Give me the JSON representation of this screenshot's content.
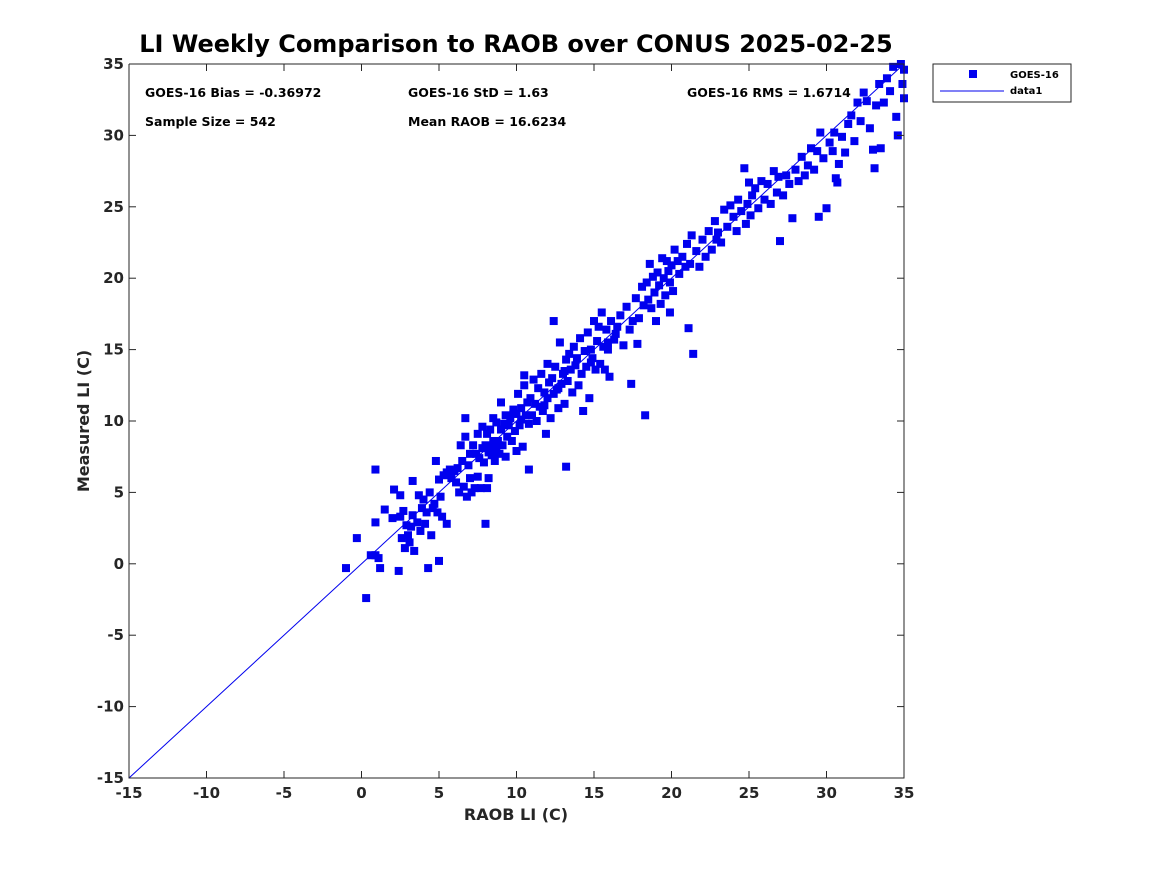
{
  "chart_data": {
    "type": "scatter",
    "title": "LI Weekly Comparison to RAOB over CONUS 2025-02-25",
    "xlabel": "RAOB LI (C)",
    "ylabel": "Measured LI (C)",
    "xlim": [
      -15,
      35
    ],
    "ylim": [
      -15,
      35
    ],
    "xticks": [
      -15,
      -10,
      -5,
      0,
      5,
      10,
      15,
      20,
      25,
      30,
      35
    ],
    "yticks": [
      -15,
      -10,
      -5,
      0,
      5,
      10,
      15,
      20,
      25,
      30,
      35
    ],
    "grid": false,
    "legend_position": "outside-top-right",
    "stats": {
      "bias": "GOES-16 Bias = -0.36972",
      "std": "GOES-16 StD = 1.63",
      "rms": "GOES-16 RMS = 1.6714",
      "sample": "Sample Size = 542",
      "mean": "Mean RAOB = 16.6234"
    },
    "series": [
      {
        "name": "GOES-16",
        "kind": "scatter",
        "marker": "square",
        "color": "#0000ee",
        "points": [
          [
            -1.0,
            -0.3
          ],
          [
            -0.3,
            1.8
          ],
          [
            0.3,
            -2.4
          ],
          [
            0.6,
            0.6
          ],
          [
            0.9,
            0.6
          ],
          [
            0.9,
            6.6
          ],
          [
            0.9,
            2.9
          ],
          [
            1.1,
            0.4
          ],
          [
            1.2,
            -0.3
          ],
          [
            1.5,
            3.8
          ],
          [
            2.0,
            3.2
          ],
          [
            2.1,
            5.2
          ],
          [
            2.4,
            -0.5
          ],
          [
            2.5,
            3.3
          ],
          [
            2.5,
            4.8
          ],
          [
            2.6,
            1.8
          ],
          [
            2.7,
            3.7
          ],
          [
            2.8,
            1.1
          ],
          [
            2.9,
            2.7
          ],
          [
            3.0,
            2.0
          ],
          [
            3.1,
            1.5
          ],
          [
            3.2,
            2.6
          ],
          [
            3.3,
            3.4
          ],
          [
            3.3,
            5.8
          ],
          [
            3.4,
            0.9
          ],
          [
            3.6,
            2.9
          ],
          [
            3.7,
            4.8
          ],
          [
            3.8,
            2.3
          ],
          [
            3.9,
            3.9
          ],
          [
            4.0,
            4.5
          ],
          [
            4.1,
            2.8
          ],
          [
            4.2,
            3.6
          ],
          [
            4.3,
            -0.3
          ],
          [
            4.4,
            5.0
          ],
          [
            4.5,
            2.0
          ],
          [
            4.6,
            3.9
          ],
          [
            4.7,
            4.2
          ],
          [
            4.8,
            7.2
          ],
          [
            4.9,
            3.6
          ],
          [
            5.0,
            0.2
          ],
          [
            5.0,
            5.9
          ],
          [
            5.1,
            4.7
          ],
          [
            5.2,
            3.3
          ],
          [
            5.3,
            6.2
          ],
          [
            5.5,
            6.4
          ],
          [
            5.5,
            2.8
          ],
          [
            5.7,
            6.6
          ],
          [
            5.8,
            6.0
          ],
          [
            6.0,
            6.5
          ],
          [
            6.1,
            5.7
          ],
          [
            6.2,
            6.7
          ],
          [
            6.3,
            5.0
          ],
          [
            6.4,
            8.3
          ],
          [
            6.5,
            7.2
          ],
          [
            6.6,
            5.4
          ],
          [
            6.7,
            10.2
          ],
          [
            6.7,
            8.9
          ],
          [
            6.8,
            4.7
          ],
          [
            6.9,
            6.9
          ],
          [
            7.0,
            7.7
          ],
          [
            7.0,
            6.0
          ],
          [
            7.1,
            5.0
          ],
          [
            7.2,
            8.3
          ],
          [
            7.3,
            5.3
          ],
          [
            7.4,
            7.7
          ],
          [
            7.5,
            9.1
          ],
          [
            7.5,
            6.1
          ],
          [
            7.6,
            7.4
          ],
          [
            7.7,
            5.3
          ],
          [
            7.8,
            8.1
          ],
          [
            7.8,
            9.6
          ],
          [
            7.9,
            7.1
          ],
          [
            8.0,
            8.3
          ],
          [
            8.0,
            2.8
          ],
          [
            8.1,
            9.1
          ],
          [
            8.1,
            5.3
          ],
          [
            8.2,
            7.8
          ],
          [
            8.2,
            6.0
          ],
          [
            8.3,
            9.4
          ],
          [
            8.3,
            8.1
          ],
          [
            8.4,
            7.6
          ],
          [
            8.5,
            8.6
          ],
          [
            8.5,
            10.2
          ],
          [
            8.6,
            7.2
          ],
          [
            8.7,
            8.1
          ],
          [
            8.7,
            9.9
          ],
          [
            8.8,
            8.6
          ],
          [
            8.9,
            7.7
          ],
          [
            9.0,
            9.4
          ],
          [
            9.0,
            11.3
          ],
          [
            9.1,
            8.3
          ],
          [
            9.2,
            9.8
          ],
          [
            9.3,
            7.5
          ],
          [
            9.3,
            10.4
          ],
          [
            9.4,
            8.9
          ],
          [
            9.5,
            9.7
          ],
          [
            9.6,
            10.2
          ],
          [
            9.7,
            8.6
          ],
          [
            9.8,
            10.8
          ],
          [
            9.9,
            9.3
          ],
          [
            10.0,
            10.5
          ],
          [
            10.0,
            7.9
          ],
          [
            10.1,
            11.9
          ],
          [
            10.2,
            9.7
          ],
          [
            10.3,
            10.9
          ],
          [
            10.4,
            8.2
          ],
          [
            10.5,
            12.5
          ],
          [
            10.5,
            13.2
          ],
          [
            10.6,
            10.4
          ],
          [
            10.7,
            11.3
          ],
          [
            10.8,
            9.8
          ],
          [
            10.8,
            6.6
          ],
          [
            10.9,
            11.6
          ],
          [
            11.0,
            10.4
          ],
          [
            11.1,
            12.9
          ],
          [
            11.2,
            11.2
          ],
          [
            11.3,
            10.0
          ],
          [
            11.4,
            12.3
          ],
          [
            11.5,
            11.0
          ],
          [
            11.6,
            13.3
          ],
          [
            11.7,
            10.7
          ],
          [
            11.8,
            12.0
          ],
          [
            11.9,
            9.1
          ],
          [
            12.0,
            11.6
          ],
          [
            12.0,
            14.0
          ],
          [
            12.1,
            12.7
          ],
          [
            12.2,
            10.2
          ],
          [
            12.3,
            13.0
          ],
          [
            12.4,
            11.9
          ],
          [
            12.4,
            17.0
          ],
          [
            12.5,
            13.8
          ],
          [
            12.6,
            12.2
          ],
          [
            12.7,
            10.9
          ],
          [
            12.8,
            15.5
          ],
          [
            12.9,
            12.6
          ],
          [
            13.0,
            13.3
          ],
          [
            13.1,
            11.2
          ],
          [
            13.2,
            14.3
          ],
          [
            13.2,
            6.8
          ],
          [
            13.3,
            12.8
          ],
          [
            13.4,
            14.7
          ],
          [
            13.5,
            13.6
          ],
          [
            13.6,
            12.0
          ],
          [
            13.7,
            15.2
          ],
          [
            13.8,
            13.9
          ],
          [
            13.9,
            14.4
          ],
          [
            14.0,
            12.5
          ],
          [
            14.1,
            15.8
          ],
          [
            14.2,
            13.3
          ],
          [
            14.3,
            10.7
          ],
          [
            14.4,
            14.9
          ],
          [
            14.5,
            13.8
          ],
          [
            14.6,
            16.2
          ],
          [
            14.7,
            11.6
          ],
          [
            14.8,
            15.0
          ],
          [
            14.9,
            14.4
          ],
          [
            15.0,
            17.0
          ],
          [
            15.1,
            13.6
          ],
          [
            15.2,
            15.6
          ],
          [
            15.3,
            16.6
          ],
          [
            15.4,
            14.0
          ],
          [
            15.5,
            17.6
          ],
          [
            15.6,
            15.2
          ],
          [
            15.7,
            13.6
          ],
          [
            15.8,
            16.4
          ],
          [
            15.9,
            15.0
          ],
          [
            16.0,
            13.1
          ],
          [
            16.1,
            17.0
          ],
          [
            16.3,
            15.7
          ],
          [
            16.5,
            16.6
          ],
          [
            16.7,
            17.4
          ],
          [
            16.9,
            15.3
          ],
          [
            17.1,
            18.0
          ],
          [
            17.3,
            16.4
          ],
          [
            17.4,
            12.6
          ],
          [
            17.5,
            17.0
          ],
          [
            17.7,
            18.6
          ],
          [
            17.8,
            15.4
          ],
          [
            17.9,
            17.2
          ],
          [
            18.1,
            19.4
          ],
          [
            18.2,
            18.1
          ],
          [
            18.3,
            10.4
          ],
          [
            18.4,
            19.7
          ],
          [
            18.5,
            18.5
          ],
          [
            18.6,
            21.0
          ],
          [
            18.7,
            17.9
          ],
          [
            18.8,
            20.1
          ],
          [
            18.9,
            19.0
          ],
          [
            19.0,
            17.0
          ],
          [
            19.1,
            20.4
          ],
          [
            19.2,
            19.5
          ],
          [
            19.3,
            18.2
          ],
          [
            19.4,
            21.4
          ],
          [
            19.5,
            20.0
          ],
          [
            19.6,
            18.8
          ],
          [
            19.7,
            21.2
          ],
          [
            19.8,
            20.5
          ],
          [
            19.9,
            17.6
          ],
          [
            20.0,
            20.9
          ],
          [
            20.1,
            19.1
          ],
          [
            20.2,
            22.0
          ],
          [
            20.4,
            21.2
          ],
          [
            20.5,
            20.3
          ],
          [
            20.7,
            21.5
          ],
          [
            20.9,
            20.8
          ],
          [
            21.0,
            22.4
          ],
          [
            21.1,
            16.5
          ],
          [
            21.2,
            21.0
          ],
          [
            21.3,
            23.0
          ],
          [
            21.4,
            14.7
          ],
          [
            21.6,
            21.9
          ],
          [
            21.8,
            20.8
          ],
          [
            22.0,
            22.7
          ],
          [
            22.2,
            21.5
          ],
          [
            22.4,
            23.3
          ],
          [
            22.6,
            22.0
          ],
          [
            22.8,
            24.0
          ],
          [
            23.0,
            23.2
          ],
          [
            23.2,
            22.5
          ],
          [
            23.4,
            24.8
          ],
          [
            23.6,
            23.6
          ],
          [
            23.8,
            25.1
          ],
          [
            24.0,
            24.3
          ],
          [
            24.2,
            23.3
          ],
          [
            24.3,
            25.5
          ],
          [
            24.5,
            24.7
          ],
          [
            24.7,
            27.7
          ],
          [
            24.8,
            23.8
          ],
          [
            24.9,
            25.2
          ],
          [
            25.0,
            26.7
          ],
          [
            25.1,
            24.4
          ],
          [
            25.2,
            25.8
          ],
          [
            25.4,
            26.3
          ],
          [
            25.6,
            24.9
          ],
          [
            25.8,
            26.8
          ],
          [
            26.0,
            25.5
          ],
          [
            26.2,
            26.6
          ],
          [
            26.4,
            25.2
          ],
          [
            26.6,
            27.5
          ],
          [
            26.8,
            26.0
          ],
          [
            26.9,
            27.1
          ],
          [
            27.0,
            22.6
          ],
          [
            27.2,
            25.8
          ],
          [
            27.4,
            27.2
          ],
          [
            27.6,
            26.6
          ],
          [
            27.8,
            24.2
          ],
          [
            28.0,
            27.6
          ],
          [
            28.2,
            26.8
          ],
          [
            28.4,
            28.5
          ],
          [
            28.6,
            27.2
          ],
          [
            28.8,
            27.9
          ],
          [
            29.0,
            29.1
          ],
          [
            29.2,
            27.6
          ],
          [
            29.4,
            28.9
          ],
          [
            29.5,
            24.3
          ],
          [
            29.6,
            30.2
          ],
          [
            29.8,
            28.4
          ],
          [
            30.0,
            24.9
          ],
          [
            30.2,
            29.5
          ],
          [
            30.4,
            28.9
          ],
          [
            30.5,
            30.2
          ],
          [
            30.6,
            27.0
          ],
          [
            30.7,
            26.7
          ],
          [
            30.8,
            28.0
          ],
          [
            31.0,
            29.9
          ],
          [
            31.2,
            28.8
          ],
          [
            31.4,
            30.8
          ],
          [
            31.6,
            31.4
          ],
          [
            31.8,
            29.6
          ],
          [
            32.0,
            32.3
          ],
          [
            32.2,
            31.0
          ],
          [
            32.4,
            33.0
          ],
          [
            32.6,
            32.4
          ],
          [
            32.8,
            30.5
          ],
          [
            33.0,
            29.0
          ],
          [
            33.1,
            27.7
          ],
          [
            33.2,
            32.1
          ],
          [
            33.4,
            33.6
          ],
          [
            33.5,
            29.1
          ],
          [
            33.7,
            32.3
          ],
          [
            33.9,
            34.0
          ],
          [
            34.1,
            33.1
          ],
          [
            34.3,
            34.8
          ],
          [
            34.5,
            31.3
          ],
          [
            34.6,
            30.0
          ],
          [
            34.8,
            35.0
          ],
          [
            34.9,
            33.6
          ],
          [
            35.0,
            32.6
          ],
          [
            35.0,
            34.6
          ],
          [
            16.4,
            16.1
          ],
          [
            11.8,
            11.1
          ],
          [
            13.1,
            13.5
          ],
          [
            9.8,
            10.5
          ],
          [
            15.9,
            15.5
          ],
          [
            12.7,
            12.3
          ],
          [
            14.8,
            14.1
          ],
          [
            19.9,
            19.7
          ],
          [
            10.3,
            10.1
          ],
          [
            8.6,
            8.0
          ],
          [
            22.9,
            22.7
          ]
        ]
      },
      {
        "name": "data1",
        "kind": "line",
        "color": "#0000ee",
        "x": [
          -15,
          35
        ],
        "y": [
          -15,
          35
        ]
      }
    ]
  }
}
